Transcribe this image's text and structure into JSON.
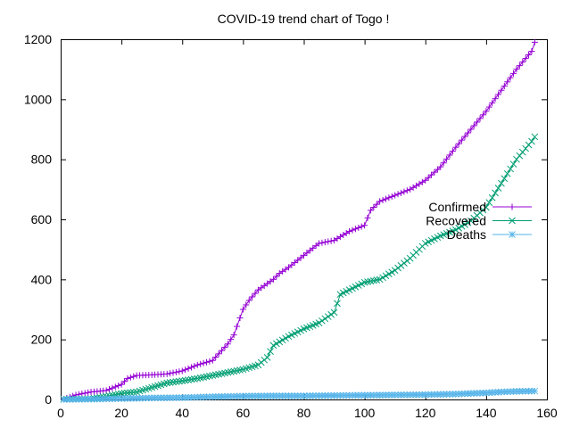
{
  "chart_data": {
    "type": "line",
    "title": "COVID-19 trend chart of Togo !",
    "xlabel": "",
    "ylabel": "",
    "xlim": [
      0,
      160
    ],
    "ylim": [
      0,
      1200
    ],
    "xticks": [
      0,
      20,
      40,
      60,
      80,
      100,
      120,
      140,
      160
    ],
    "yticks": [
      0,
      200,
      400,
      600,
      800,
      1000,
      1200
    ],
    "grid": false,
    "legend_position": "right",
    "series": [
      {
        "name": "Confirmed",
        "color": "#9400d3",
        "marker": "plus",
        "x": [
          1,
          5,
          10,
          15,
          20,
          22,
          25,
          30,
          35,
          40,
          45,
          50,
          55,
          57,
          60,
          62,
          65,
          70,
          72,
          75,
          80,
          85,
          90,
          95,
          100,
          102,
          105,
          110,
          115,
          120,
          125,
          130,
          135,
          140,
          145,
          150,
          155,
          156
        ],
        "y": [
          1,
          15,
          25,
          30,
          50,
          70,
          80,
          82,
          85,
          95,
          115,
          130,
          185,
          215,
          300,
          330,
          365,
          400,
          420,
          440,
          480,
          520,
          530,
          560,
          580,
          630,
          660,
          680,
          700,
          730,
          775,
          840,
          900,
          960,
          1030,
          1100,
          1160,
          1190
        ]
      },
      {
        "name": "Recovered",
        "color": "#009e73",
        "marker": "cross",
        "x": [
          1,
          10,
          15,
          20,
          25,
          30,
          35,
          40,
          45,
          50,
          55,
          60,
          65,
          68,
          70,
          75,
          80,
          85,
          90,
          92,
          95,
          100,
          105,
          110,
          115,
          120,
          125,
          130,
          135,
          140,
          145,
          150,
          155,
          156
        ],
        "y": [
          1,
          2,
          10,
          20,
          25,
          40,
          55,
          62,
          70,
          80,
          90,
          100,
          115,
          140,
          180,
          210,
          235,
          255,
          290,
          350,
          365,
          390,
          400,
          430,
          470,
          520,
          545,
          565,
          595,
          640,
          720,
          800,
          860,
          875
        ]
      },
      {
        "name": "Deaths",
        "color": "#56b4e9",
        "marker": "star",
        "x": [
          1,
          10,
          20,
          30,
          40,
          50,
          60,
          70,
          80,
          90,
          100,
          110,
          120,
          130,
          140,
          145,
          150,
          156
        ],
        "y": [
          0,
          1,
          3,
          5,
          6,
          9,
          11,
          12,
          12,
          13,
          14,
          15,
          16,
          18,
          22,
          25,
          27,
          28
        ]
      }
    ]
  }
}
